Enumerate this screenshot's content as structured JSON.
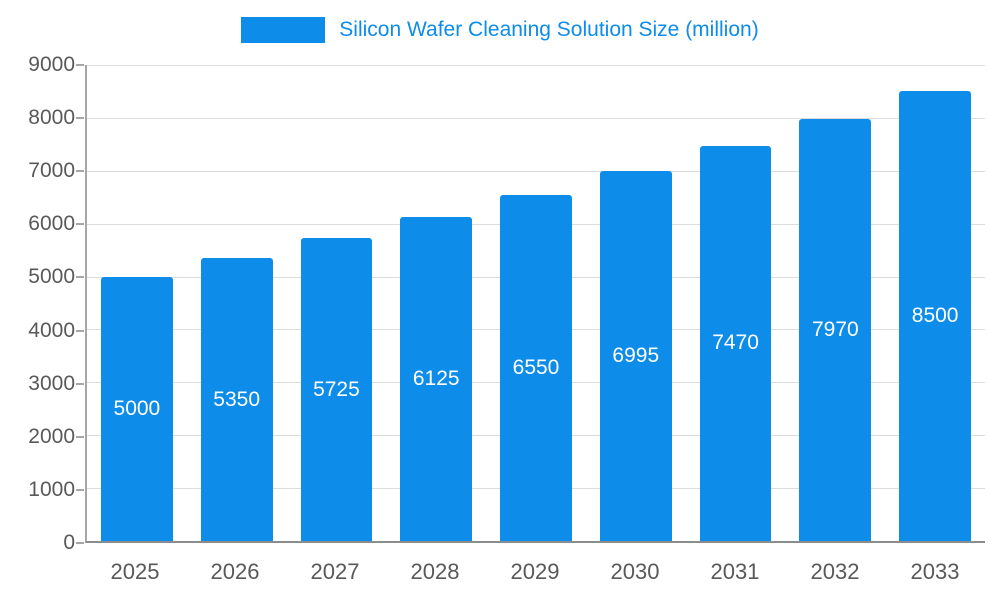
{
  "chart_data": {
    "type": "bar",
    "title": "Silicon Wafer Cleaning Solution Size (million)",
    "categories": [
      "2025",
      "2026",
      "2027",
      "2028",
      "2029",
      "2030",
      "2031",
      "2032",
      "2033"
    ],
    "values": [
      5000,
      5350,
      5725,
      6125,
      6550,
      6995,
      7470,
      7970,
      8500
    ],
    "xlabel": "",
    "ylabel": "",
    "ylim": [
      0,
      9000
    ],
    "ytick_step": 1000,
    "grid": true,
    "legend_position": "top",
    "bar_color": "#0d8ce9",
    "title_color": "#0d8ce9",
    "axis_text_color": "#595959",
    "grid_color": "#dcdcdc",
    "value_label_color": "#ffffff"
  }
}
